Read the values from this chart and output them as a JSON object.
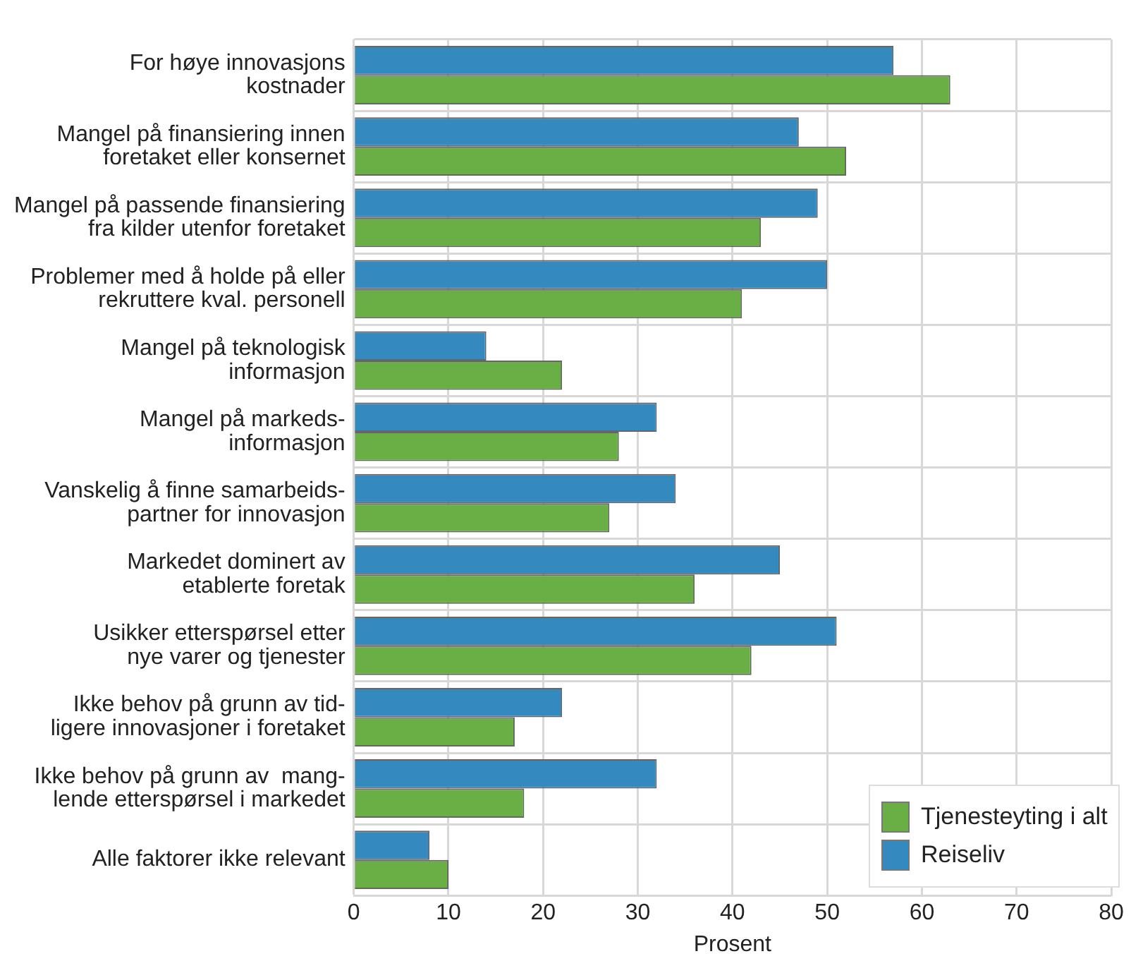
{
  "chart_data": {
    "type": "bar",
    "orientation": "horizontal",
    "xlabel": "Prosent",
    "categories": [
      "For høye innovasjons\nkostnader",
      "Mangel på finansiering innen\nforetaket eller konsernet",
      "Mangel på passende finansiering\nfra kilder utenfor foretaket",
      "Problemer med å holde på eller\nrekruttere kval. personell",
      "Mangel på teknologisk\ninformasjon",
      "Mangel på markeds-\ninformasjon",
      "Vanskelig å finne samarbeids-\npartner for innovasjon",
      "Markedet dominert av\netablerte foretak",
      "Usikker etterspørsel etter\nnye varer og tjenester",
      "Ikke behov på grunn av tid-\nligere innovasjoner i foretaket",
      "Ikke behov på grunn av  mang-\nlende etterspørsel i markedet",
      "Alle faktorer ikke relevant"
    ],
    "series": [
      {
        "name": "Reiseliv",
        "color": "#348abf",
        "values": [
          57,
          47,
          49,
          50,
          14,
          32,
          34,
          45,
          51,
          22,
          32,
          8
        ]
      },
      {
        "name": "Tjenesteyting i alt",
        "color": "#6aaf45",
        "values": [
          63,
          52,
          43,
          41,
          22,
          28,
          27,
          36,
          42,
          17,
          18,
          10
        ]
      }
    ],
    "xlim": [
      0,
      80
    ],
    "xticks": [
      0,
      10,
      20,
      30,
      40,
      50,
      60,
      70,
      80
    ],
    "grid": true,
    "legend": "bottom right"
  }
}
